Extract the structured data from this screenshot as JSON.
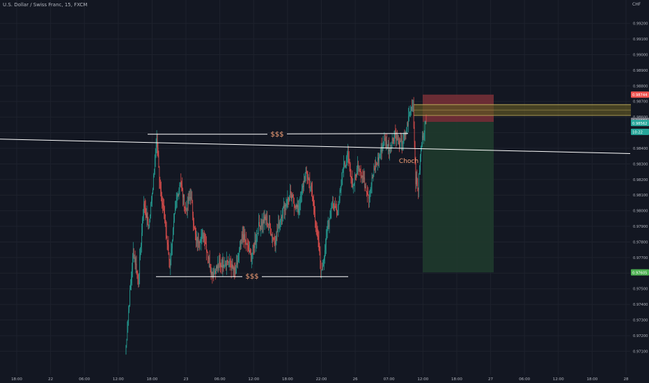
{
  "header": {
    "symbol": "U.S. Dollar / Swiss Franc, 15, FXCM",
    "currency": "CHF"
  },
  "colors": {
    "background": "#131722",
    "up": "#26a69a",
    "down": "#ef5350",
    "grid": "#1e222d",
    "axis_text": "#b2b5be",
    "annotation_line": "#ffffff",
    "annotation_text": "#f7a278",
    "stop_zone": "#7a3037",
    "target_zone": "#1f3a2c",
    "supply_zone": "#5c5424"
  },
  "chart_data": {
    "type": "candlestick",
    "y_axis": {
      "min": 0.9695,
      "max": 0.9935,
      "ticks": [
        "0.99200",
        "0.99100",
        "0.99000",
        "0.98900",
        "0.98800",
        "0.98700",
        "0.98600",
        "0.98500",
        "0.98400",
        "0.98300",
        "0.98200",
        "0.98100",
        "0.98000",
        "0.97900",
        "0.97800",
        "0.97700",
        "0.97600",
        "0.97500",
        "0.97400",
        "0.97300",
        "0.97200",
        "0.97100"
      ]
    },
    "x_axis": {
      "ticks": [
        "18:00",
        "22",
        "06:00",
        "12:00",
        "18:00",
        "23",
        "06:00",
        "12:00",
        "18:00",
        "22:00",
        "26",
        "07:00",
        "12:00",
        "18:00",
        "27",
        "06:00",
        "12:00",
        "18:00",
        "28"
      ]
    },
    "price_labels": [
      {
        "label": "0.98744",
        "value": 0.98744,
        "color": "#ef5350"
      },
      {
        "label": "0.98576",
        "value": 0.98576,
        "color": "#787b86"
      },
      {
        "label": "0.98562",
        "value": 0.98562,
        "color": "#26a69a"
      },
      {
        "label": "10:22",
        "value": 0.98505,
        "color": "#26a69a"
      },
      {
        "label": "0.97605",
        "value": 0.97605,
        "color": "#4caf50"
      }
    ],
    "annotations": [
      {
        "text": "$$$",
        "kind": "liquidity_high",
        "value": 0.9849
      },
      {
        "text": "$$$",
        "kind": "liquidity_low",
        "value": 0.97578
      },
      {
        "text": "Choch",
        "kind": "change_of_character"
      }
    ],
    "trendline": {
      "start": 0.9849,
      "end": 0.9838
    },
    "trade": {
      "entry": 0.98569,
      "stop": 0.98744,
      "target": 0.97605,
      "supply_zone": [
        0.9861,
        0.9868
      ]
    },
    "waypoints": [
      [
        0,
        0.9708
      ],
      [
        3,
        0.9775
      ],
      [
        5,
        0.9755
      ],
      [
        7,
        0.9805
      ],
      [
        9,
        0.979
      ],
      [
        11,
        0.9825
      ],
      [
        12,
        0.9848
      ],
      [
        13,
        0.982
      ],
      [
        15,
        0.9795
      ],
      [
        17,
        0.9765
      ],
      [
        19,
        0.98
      ],
      [
        21,
        0.982
      ],
      [
        23,
        0.98
      ],
      [
        25,
        0.981
      ],
      [
        27,
        0.978
      ],
      [
        30,
        0.9785
      ],
      [
        33,
        0.976
      ],
      [
        36,
        0.9765
      ],
      [
        39,
        0.9768
      ],
      [
        42,
        0.976
      ],
      [
        45,
        0.9785
      ],
      [
        48,
        0.977
      ],
      [
        51,
        0.979
      ],
      [
        54,
        0.9795
      ],
      [
        57,
        0.978
      ],
      [
        60,
        0.98
      ],
      [
        63,
        0.981
      ],
      [
        66,
        0.98
      ],
      [
        69,
        0.9825
      ],
      [
        71,
        0.9815
      ],
      [
        73,
        0.979
      ],
      [
        75,
        0.976
      ],
      [
        77,
        0.9785
      ],
      [
        79,
        0.9805
      ],
      [
        81,
        0.98
      ],
      [
        83,
        0.9825
      ],
      [
        85,
        0.9835
      ],
      [
        87,
        0.9815
      ],
      [
        89,
        0.983
      ],
      [
        91,
        0.982
      ],
      [
        93,
        0.981
      ],
      [
        95,
        0.9825
      ],
      [
        97,
        0.9835
      ],
      [
        99,
        0.9845
      ],
      [
        101,
        0.984
      ],
      [
        103,
        0.985
      ],
      [
        105,
        0.9842
      ],
      [
        107,
        0.9848
      ],
      [
        109,
        0.9865
      ],
      [
        110,
        0.9868
      ],
      [
        111,
        0.982
      ],
      [
        112,
        0.9815
      ],
      [
        113,
        0.984
      ],
      [
        114,
        0.9852
      ],
      [
        115,
        0.9856
      ]
    ]
  }
}
